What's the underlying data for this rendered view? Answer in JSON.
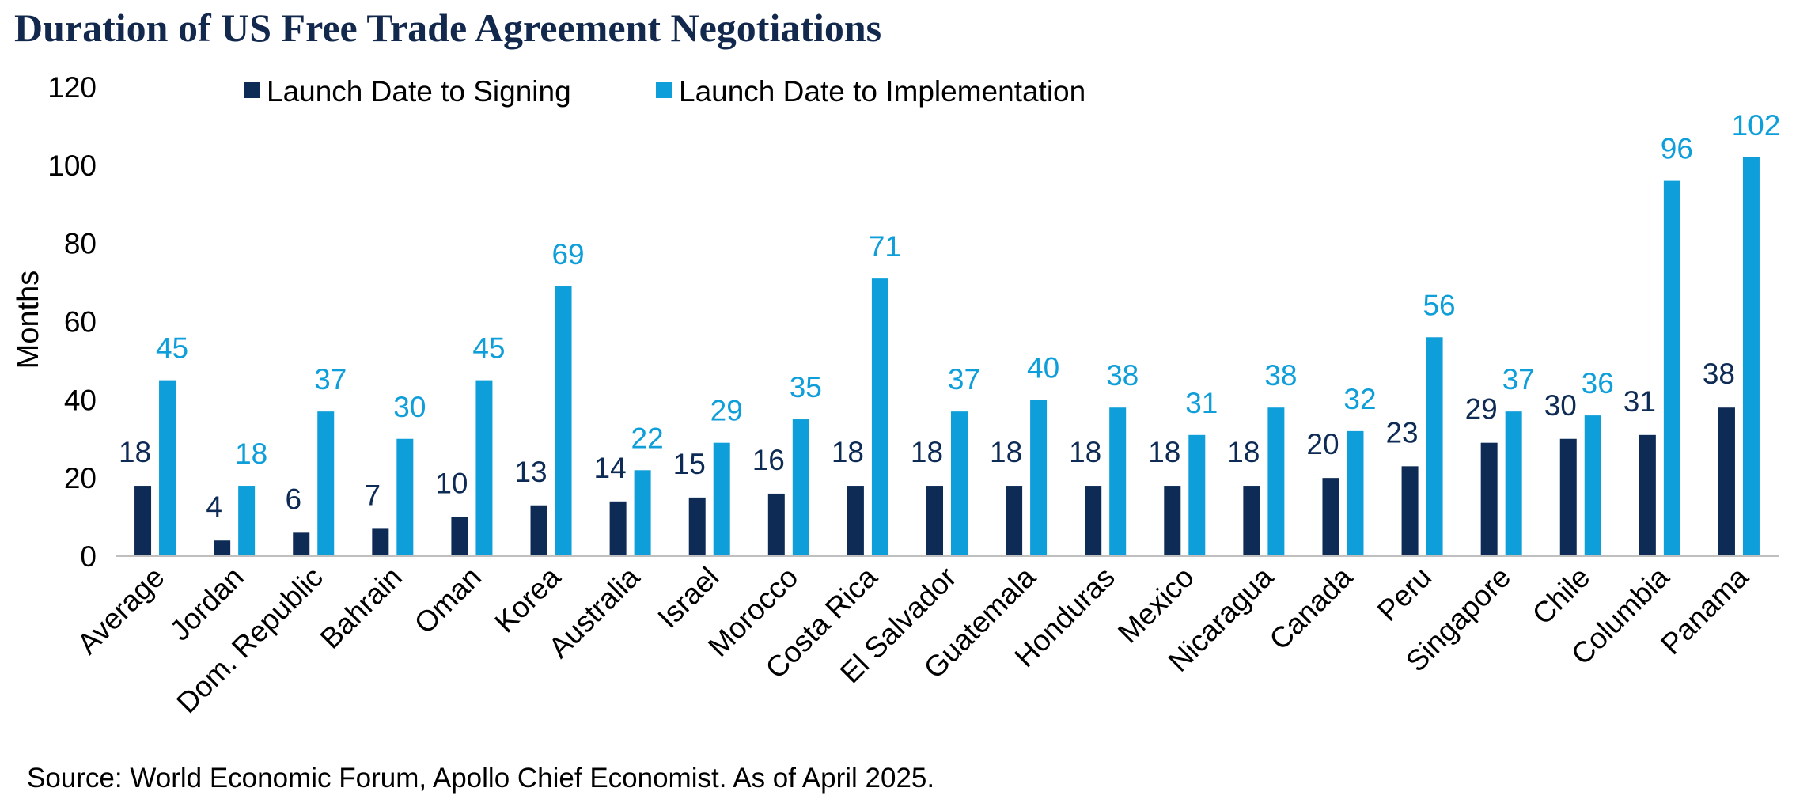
{
  "title": "Duration of US Free Trade Agreement Negotiations",
  "source": "Source: World Economic Forum, Apollo Chief Economist. As of April 2025.",
  "colors": {
    "signing": "#0d2b55",
    "implementation": "#0e9ed9",
    "axis": "#bfbfbf",
    "title": "#13284d"
  },
  "chart_data": {
    "type": "bar",
    "title": "Duration of US Free Trade Agreement Negotiations",
    "xlabel": "",
    "ylabel": "Months",
    "ylim": [
      0,
      120
    ],
    "yticks": [
      0,
      20,
      40,
      60,
      80,
      100,
      120
    ],
    "grid": false,
    "legend_position": "top",
    "categories": [
      "Average",
      "Jordan",
      "Dom. Republic",
      "Bahrain",
      "Oman",
      "Korea",
      "Australia",
      "Israel",
      "Morocco",
      "Costa Rica",
      "El Salvador",
      "Guatemala",
      "Honduras",
      "Mexico",
      "Nicaragua",
      "Canada",
      "Peru",
      "Singapore",
      "Chile",
      "Columbia",
      "Panama"
    ],
    "series": [
      {
        "name": "Launch Date to Signing",
        "values": [
          18,
          4,
          6,
          7,
          10,
          13,
          14,
          15,
          16,
          18,
          18,
          18,
          18,
          18,
          18,
          20,
          23,
          29,
          30,
          31,
          38
        ]
      },
      {
        "name": "Launch Date to Implementation",
        "values": [
          45,
          18,
          37,
          30,
          45,
          69,
          22,
          29,
          35,
          71,
          37,
          40,
          38,
          31,
          38,
          32,
          56,
          37,
          36,
          96,
          102
        ]
      }
    ]
  }
}
